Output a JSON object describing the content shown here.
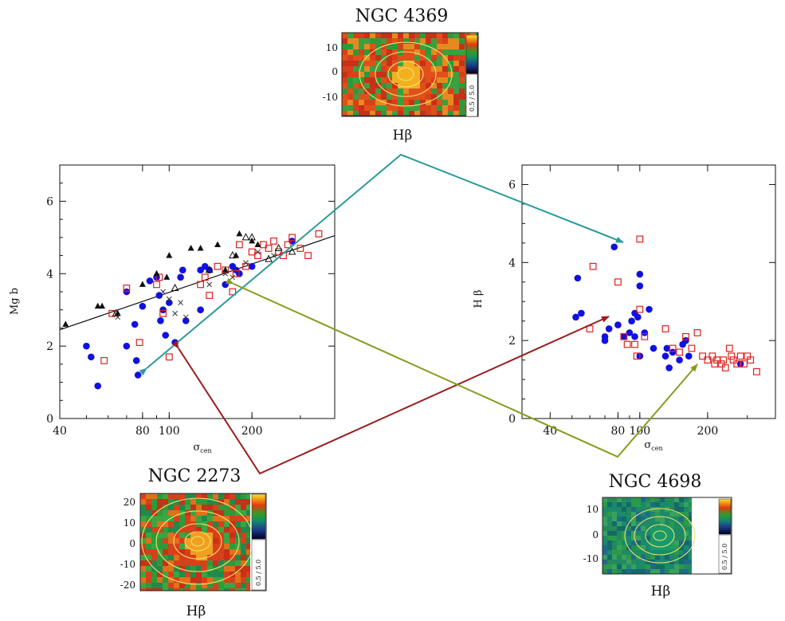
{
  "colors": {
    "blue_series": "#1010e0",
    "red_series": "#e02020",
    "arrow_teal": "#2a9a9a",
    "arrow_darkred": "#9a1c1c",
    "arrow_olive": "#8a9a20",
    "fit_line": "#111111"
  },
  "maps": [
    {
      "id": "ngc4369",
      "title": "NGC 4369",
      "label": "Hβ",
      "yticks": [
        "10",
        "0",
        "-10"
      ],
      "cbar": "0.5 / 5.0",
      "dominant": "orange-red"
    },
    {
      "id": "ngc2273",
      "title": "NGC 2273",
      "label": "Hβ",
      "yticks": [
        "20",
        "10",
        "0",
        "-10",
        "-20"
      ],
      "cbar": "0.5 / 5.0",
      "dominant": "red-green"
    },
    {
      "id": "ngc4698",
      "title": "NGC 4698",
      "label": "Hβ",
      "yticks": [
        "10",
        "0",
        "-10"
      ],
      "cbar": "0.5 / 5.0",
      "dominant": "teal-green"
    }
  ],
  "chart_data": [
    {
      "type": "scatter",
      "ylabel": "Mg b",
      "xlabel": "σcen",
      "xscale": "log",
      "xlim": [
        40,
        400
      ],
      "ylim": [
        0,
        7
      ],
      "xticks": [
        "40",
        "80",
        "100",
        "200"
      ],
      "yticks": [
        "0",
        "2",
        "4",
        "6"
      ],
      "fit_line": {
        "x": [
          40,
          400
        ],
        "y": [
          2.45,
          5.05
        ]
      },
      "series": [
        {
          "marker": "filled-circle",
          "color": "#1010e0",
          "points": [
            [
              50,
              2.0
            ],
            [
              52,
              1.7
            ],
            [
              55,
              0.9
            ],
            [
              70,
              3.5
            ],
            [
              70,
              2.0
            ],
            [
              75,
              2.6
            ],
            [
              76,
              1.6
            ],
            [
              77,
              1.2
            ],
            [
              80,
              3.1
            ],
            [
              85,
              3.8
            ],
            [
              90,
              3.9
            ],
            [
              92,
              3.4
            ],
            [
              93,
              2.7
            ],
            [
              95,
              3.0
            ],
            [
              97,
              2.3
            ],
            [
              100,
              3.2
            ],
            [
              105,
              2.1
            ],
            [
              110,
              3.9
            ],
            [
              112,
              4.1
            ],
            [
              115,
              2.7
            ],
            [
              130,
              3.0
            ],
            [
              130,
              4.1
            ],
            [
              135,
              4.2
            ],
            [
              140,
              4.1
            ],
            [
              160,
              3.7
            ],
            [
              170,
              4.2
            ],
            [
              175,
              4.1
            ],
            [
              180,
              4.0
            ],
            [
              200,
              4.2
            ],
            [
              280,
              4.9
            ]
          ]
        },
        {
          "marker": "open-square",
          "color": "#e02020",
          "points": [
            [
              58,
              1.6
            ],
            [
              62,
              2.9
            ],
            [
              70,
              3.6
            ],
            [
              78,
              2.1
            ],
            [
              90,
              3.7
            ],
            [
              92,
              3.9
            ],
            [
              95,
              2.9
            ],
            [
              100,
              1.7
            ],
            [
              130,
              3.7
            ],
            [
              135,
              3.9
            ],
            [
              140,
              3.4
            ],
            [
              150,
              4.2
            ],
            [
              160,
              4.1
            ],
            [
              170,
              3.5
            ],
            [
              175,
              4.0
            ],
            [
              180,
              4.8
            ],
            [
              190,
              4.2
            ],
            [
              200,
              4.6
            ],
            [
              210,
              4.5
            ],
            [
              220,
              4.8
            ],
            [
              230,
              4.7
            ],
            [
              240,
              4.9
            ],
            [
              250,
              4.6
            ],
            [
              260,
              4.5
            ],
            [
              270,
              4.8
            ],
            [
              280,
              5.0
            ],
            [
              300,
              4.7
            ],
            [
              320,
              4.5
            ],
            [
              350,
              5.1
            ]
          ]
        },
        {
          "marker": "filled-triangle",
          "color": "#111111",
          "points": [
            [
              42,
              2.6
            ],
            [
              55,
              3.1
            ],
            [
              57,
              3.1
            ],
            [
              65,
              2.9
            ],
            [
              80,
              3.7
            ],
            [
              90,
              4.0
            ],
            [
              98,
              3.9
            ],
            [
              100,
              4.5
            ],
            [
              120,
              4.7
            ],
            [
              130,
              4.7
            ],
            [
              150,
              4.8
            ],
            [
              160,
              4.1
            ],
            [
              175,
              4.5
            ],
            [
              180,
              5.1
            ],
            [
              200,
              4.9
            ],
            [
              210,
              4.8
            ]
          ]
        },
        {
          "marker": "open-triangle",
          "color": "#111111",
          "points": [
            [
              64,
              2.9
            ],
            [
              105,
              3.6
            ],
            [
              140,
              4.1
            ],
            [
              170,
              4.5
            ],
            [
              190,
              5.0
            ],
            [
              200,
              5.0
            ],
            [
              230,
              4.4
            ],
            [
              250,
              4.7
            ],
            [
              280,
              4.6
            ]
          ]
        },
        {
          "marker": "cross",
          "color": "#333333",
          "points": [
            [
              65,
              2.8
            ],
            [
              95,
              3.5
            ],
            [
              100,
              3.3
            ],
            [
              105,
              2.9
            ],
            [
              110,
              3.2
            ],
            [
              115,
              2.8
            ],
            [
              140,
              3.7
            ],
            [
              160,
              4.0
            ],
            [
              170,
              3.9
            ],
            [
              190,
              4.3
            ],
            [
              210,
              4.6
            ],
            [
              240,
              4.5
            ]
          ]
        }
      ]
    },
    {
      "type": "scatter",
      "ylabel": "H β",
      "xlabel": "σcen",
      "xscale": "log",
      "xlim": [
        30,
        400
      ],
      "ylim": [
        0,
        6.5
      ],
      "xticks": [
        "40",
        "80",
        "100",
        "200"
      ],
      "yticks": [
        "0",
        "2",
        "4",
        "6"
      ],
      "series": [
        {
          "marker": "filled-circle",
          "color": "#1010e0",
          "points": [
            [
              52,
              2.6
            ],
            [
              53,
              3.6
            ],
            [
              55,
              2.7
            ],
            [
              70,
              2.0
            ],
            [
              70,
              2.1
            ],
            [
              73,
              2.3
            ],
            [
              77,
              4.4
            ],
            [
              80,
              2.4
            ],
            [
              85,
              2.1
            ],
            [
              90,
              2.2
            ],
            [
              92,
              2.5
            ],
            [
              95,
              2.7
            ],
            [
              95,
              2.1
            ],
            [
              98,
              2.6
            ],
            [
              100,
              3.7
            ],
            [
              100,
              3.4
            ],
            [
              100,
              1.6
            ],
            [
              105,
              2.2
            ],
            [
              110,
              2.8
            ],
            [
              115,
              1.8
            ],
            [
              130,
              1.6
            ],
            [
              132,
              1.8
            ],
            [
              135,
              1.3
            ],
            [
              140,
              1.7
            ],
            [
              150,
              1.5
            ],
            [
              155,
              1.9
            ],
            [
              160,
              2.0
            ],
            [
              165,
              1.6
            ],
            [
              280,
              1.4
            ]
          ]
        },
        {
          "marker": "open-square",
          "color": "#e02020",
          "points": [
            [
              60,
              2.3
            ],
            [
              62,
              3.9
            ],
            [
              80,
              3.5
            ],
            [
              85,
              2.1
            ],
            [
              88,
              1.9
            ],
            [
              95,
              1.9
            ],
            [
              97,
              1.6
            ],
            [
              100,
              4.6
            ],
            [
              100,
              2.8
            ],
            [
              105,
              2.1
            ],
            [
              130,
              2.3
            ],
            [
              140,
              1.8
            ],
            [
              150,
              1.7
            ],
            [
              160,
              2.1
            ],
            [
              170,
              1.8
            ],
            [
              180,
              2.2
            ],
            [
              190,
              1.6
            ],
            [
              200,
              1.5
            ],
            [
              210,
              1.6
            ],
            [
              215,
              1.4
            ],
            [
              220,
              1.5
            ],
            [
              230,
              1.4
            ],
            [
              235,
              1.5
            ],
            [
              240,
              1.3
            ],
            [
              250,
              1.8
            ],
            [
              255,
              1.6
            ],
            [
              260,
              1.5
            ],
            [
              270,
              1.4
            ],
            [
              280,
              1.6
            ],
            [
              290,
              1.4
            ],
            [
              300,
              1.6
            ],
            [
              310,
              1.5
            ],
            [
              330,
              1.2
            ]
          ]
        }
      ]
    }
  ]
}
